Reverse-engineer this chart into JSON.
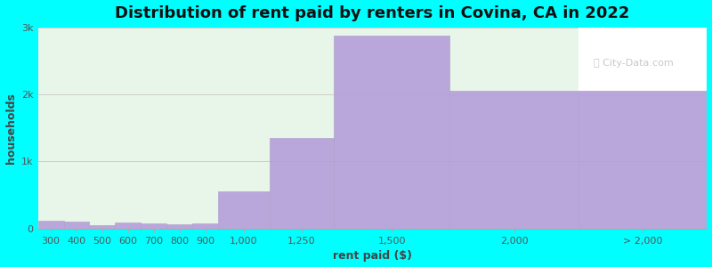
{
  "title": "Distribution of rent paid by renters in Covina, CA in 2022",
  "xlabel": "rent paid ($)",
  "ylabel": "households",
  "background_color": "#00FFFF",
  "plot_bg_color_left": "#e8f5e9",
  "plot_bg_color": "#e8f5e9",
  "bar_color": "#b39ddb",
  "bar_edge_color": "#b0a0c8",
  "categories": [
    "300",
    "400",
    "500",
    "600",
    "700",
    "800",
    "900",
    "1,000",
    "1,250",
    "1,500",
    "2,000",
    "> 2,000"
  ],
  "values": [
    120,
    100,
    55,
    90,
    80,
    65,
    80,
    550,
    1350,
    2870,
    2050,
    2050
  ],
  "ylim": [
    0,
    3000
  ],
  "yticks": [
    0,
    1000,
    2000,
    3000
  ],
  "ytick_labels": [
    "0",
    "1k",
    "2k",
    "3k"
  ],
  "grid_color": "#cccccc",
  "title_fontsize": 13,
  "axis_fontsize": 9,
  "tick_fontsize": 8,
  "bar_lefts": [
    0,
    100,
    200,
    300,
    400,
    500,
    600,
    700,
    900,
    1150,
    1600,
    2100
  ],
  "bar_widths": [
    100,
    100,
    100,
    100,
    100,
    100,
    100,
    200,
    250,
    450,
    500,
    500
  ],
  "xtick_positions": [
    50,
    150,
    250,
    350,
    450,
    550,
    650,
    800,
    1025,
    1375,
    1850,
    2350
  ],
  "xlim": [
    0,
    2600
  ]
}
